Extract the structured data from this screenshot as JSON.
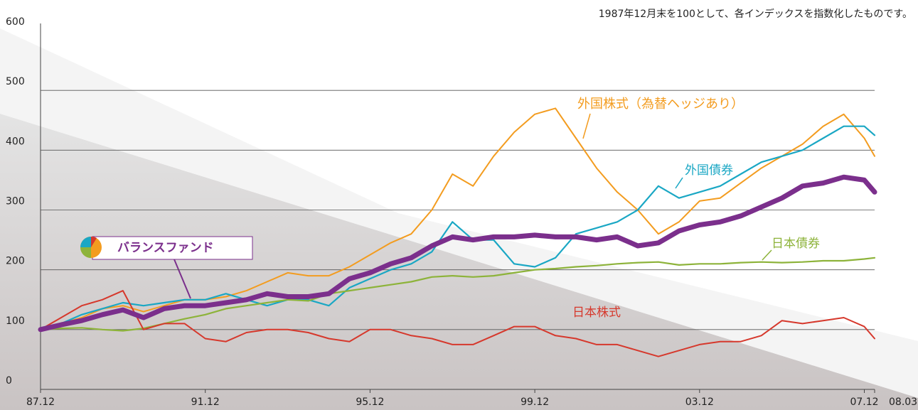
{
  "chart_data": {
    "type": "line",
    "note": "1987年12月末を100として、各インデックスを指数化したものです。",
    "x": [
      1988,
      1988.5,
      1989,
      1989.5,
      1990,
      1990.5,
      1991,
      1991.5,
      1992,
      1992.5,
      1993,
      1993.5,
      1994,
      1994.5,
      1995,
      1995.5,
      1996,
      1996.5,
      1997,
      1997.5,
      1998,
      1998.5,
      1999,
      1999.5,
      2000,
      2000.5,
      2001,
      2001.5,
      2002,
      2002.5,
      2003,
      2003.5,
      2004,
      2004.5,
      2005,
      2005.5,
      2006,
      2006.5,
      2007,
      2007.5,
      2008,
      2008.25
    ],
    "xlim": [
      1988,
      2008.25
    ],
    "xticks": [
      {
        "value": 1988,
        "label": "87.12"
      },
      {
        "value": 1992,
        "label": "91.12"
      },
      {
        "value": 1996,
        "label": "95.12"
      },
      {
        "value": 2000,
        "label": "99.12"
      },
      {
        "value": 2004,
        "label": "03.12"
      },
      {
        "value": 2008,
        "label": "07.12"
      },
      {
        "value": 2008.25,
        "label": "08.03"
      }
    ],
    "ylim": [
      0,
      600
    ],
    "yticks": [
      0,
      100,
      200,
      300,
      400,
      500,
      600
    ],
    "grid": true,
    "series": [
      {
        "name": "外国株式（為替ヘッジあり）",
        "color": "#f39c1f",
        "values": [
          100,
          110,
          120,
          135,
          140,
          130,
          140,
          150,
          150,
          155,
          165,
          180,
          195,
          190,
          190,
          205,
          225,
          245,
          260,
          300,
          360,
          340,
          390,
          430,
          460,
          470,
          420,
          370,
          330,
          300,
          260,
          280,
          315,
          320,
          345,
          370,
          390,
          410,
          440,
          460,
          420,
          390
        ]
      },
      {
        "name": "外国債券",
        "color": "#1aa7c4",
        "values": [
          100,
          110,
          125,
          135,
          145,
          140,
          145,
          150,
          150,
          160,
          150,
          140,
          150,
          150,
          140,
          170,
          185,
          200,
          210,
          230,
          280,
          250,
          250,
          210,
          205,
          220,
          260,
          270,
          280,
          300,
          340,
          320,
          330,
          340,
          360,
          380,
          390,
          400,
          420,
          440,
          440,
          425
        ]
      },
      {
        "name": "日本債券",
        "color": "#8db33a",
        "values": [
          100,
          102,
          103,
          100,
          98,
          102,
          110,
          118,
          125,
          135,
          140,
          145,
          150,
          148,
          160,
          165,
          170,
          175,
          180,
          188,
          190,
          188,
          190,
          195,
          200,
          202,
          205,
          207,
          210,
          212,
          213,
          208,
          210,
          210,
          212,
          213,
          212,
          213,
          215,
          215,
          218,
          220
        ]
      },
      {
        "name": "日本株式",
        "color": "#d6382c",
        "values": [
          100,
          120,
          140,
          150,
          165,
          100,
          110,
          110,
          85,
          80,
          95,
          100,
          100,
          95,
          85,
          80,
          100,
          100,
          90,
          85,
          75,
          75,
          90,
          105,
          105,
          90,
          85,
          75,
          75,
          65,
          55,
          65,
          75,
          80,
          80,
          90,
          115,
          110,
          115,
          120,
          105,
          85
        ]
      },
      {
        "name": "バランスファンド",
        "color": "#7b2f8c",
        "values": [
          100,
          108,
          115,
          125,
          133,
          120,
          135,
          140,
          140,
          145,
          150,
          160,
          155,
          155,
          160,
          185,
          195,
          210,
          220,
          240,
          255,
          250,
          255,
          255,
          258,
          255,
          255,
          250,
          255,
          240,
          245,
          265,
          275,
          280,
          290,
          305,
          320,
          340,
          345,
          355,
          350,
          330
        ]
      }
    ]
  }
}
